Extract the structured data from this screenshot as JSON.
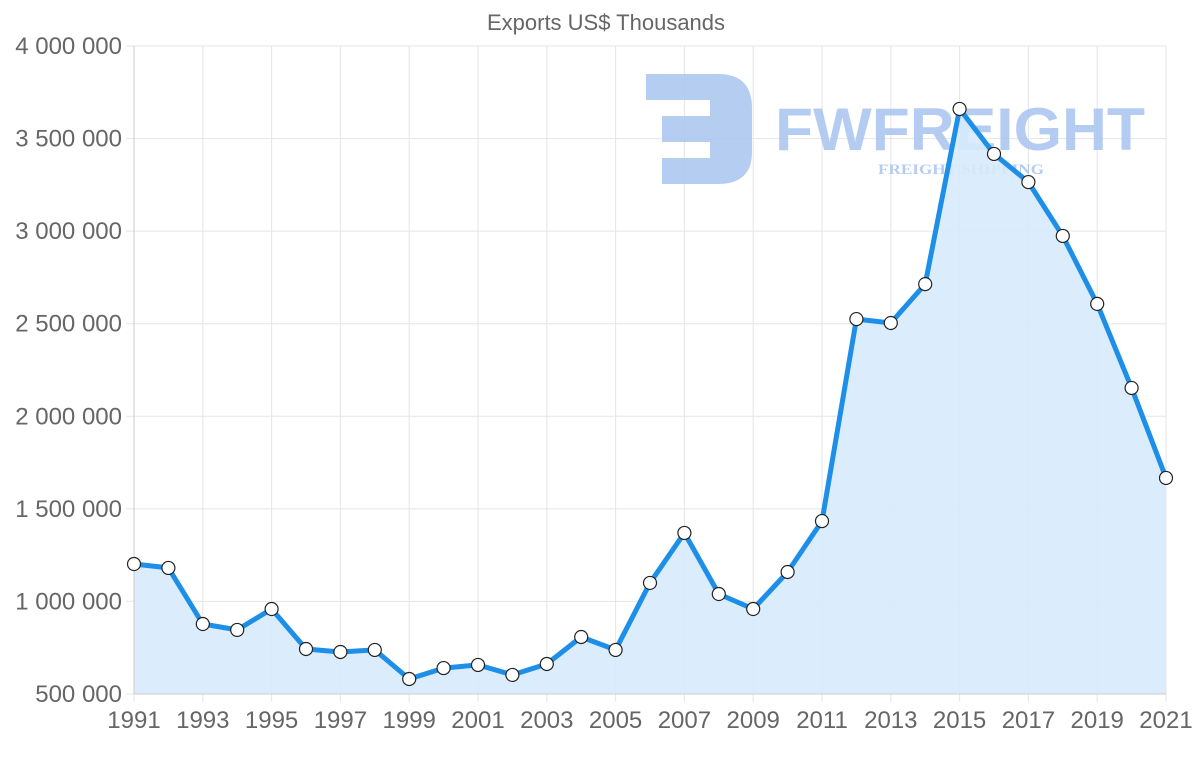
{
  "chart_data": {
    "type": "line",
    "title": "Exports US$ Thousands",
    "xlabel": "",
    "ylabel": "",
    "ylim": [
      500000,
      4000000
    ],
    "yticks": [
      500000,
      1000000,
      1500000,
      2000000,
      2500000,
      3000000,
      3500000,
      4000000
    ],
    "ytick_labels": [
      "500 000",
      "1 000 000",
      "1 500 000",
      "2 000 000",
      "2 500 000",
      "3 000 000",
      "3 500 000",
      "4 000 000"
    ],
    "xtick_labels": [
      "1991",
      "1993",
      "1995",
      "1997",
      "1999",
      "2001",
      "2003",
      "2005",
      "2007",
      "2009",
      "2011",
      "2013",
      "2015",
      "2017",
      "2019",
      "2021"
    ],
    "grid": true,
    "legend": null,
    "fill": true,
    "x": [
      1991,
      1992,
      1993,
      1994,
      1995,
      1996,
      1997,
      1998,
      1999,
      2000,
      2001,
      2002,
      2003,
      2004,
      2005,
      2006,
      2007,
      2008,
      2009,
      2010,
      2011,
      2012,
      2013,
      2014,
      2015,
      2016,
      2017,
      2018,
      2019,
      2020,
      2021
    ],
    "series": [
      {
        "name": "Exports US$ Thousands",
        "color": "#1e8fe8",
        "fill_color": "#d7ebfc",
        "values": [
          1202000,
          1181000,
          878000,
          846000,
          959000,
          743000,
          727000,
          738000,
          581000,
          640000,
          657000,
          603000,
          662000,
          808000,
          738000,
          1100000,
          1370000,
          1040000,
          959000,
          1159000,
          1434000,
          2525000,
          2504000,
          2714000,
          3660000,
          3417000,
          3265000,
          2974000,
          2607000,
          2153000,
          1667000
        ]
      }
    ]
  },
  "watermark": {
    "brand": "FWFREIGHT",
    "tagline": "FREIGHT SHIPPING",
    "color": "#a9c4f0"
  }
}
